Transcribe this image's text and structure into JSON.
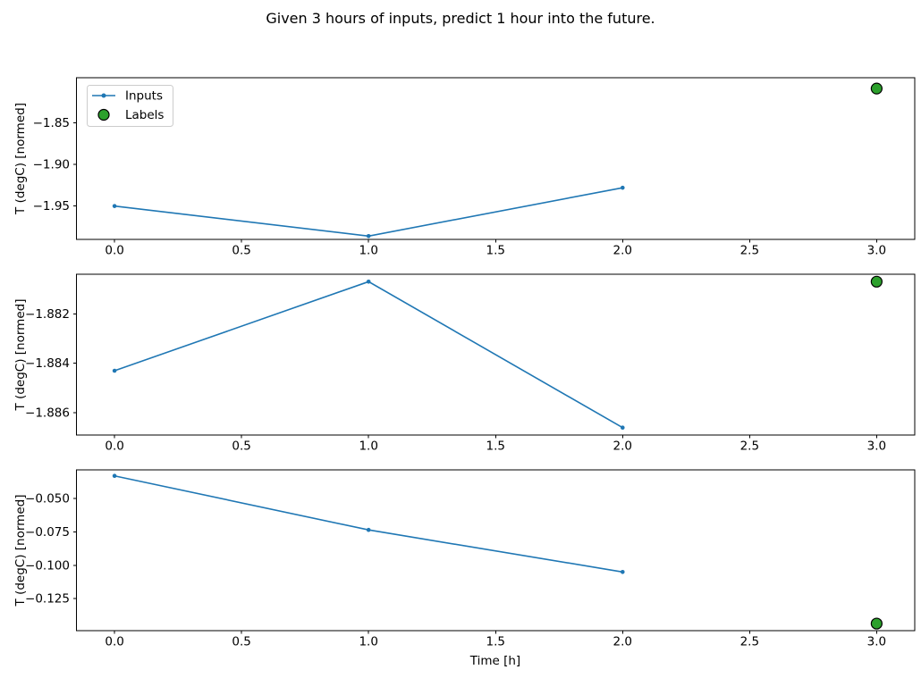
{
  "figure": {
    "title": "Given 3 hours of inputs, predict 1 hour into the future.",
    "xlabel": "Time [h]",
    "background": "#ffffff"
  },
  "colors": {
    "inputs_line": "#1f77b4",
    "labels_fill": "#2ca02c",
    "labels_edge": "#000000",
    "spine": "#000000",
    "text": "#000000",
    "legend_border": "#cccccc"
  },
  "legend": {
    "items": [
      {
        "label": "Inputs",
        "swatch": "line-with-dot-marker",
        "color": "#1f77b4"
      },
      {
        "label": "Labels",
        "swatch": "filled-circle",
        "color": "#2ca02c",
        "edge": "#000000"
      }
    ]
  },
  "chart_data": [
    {
      "type": "line",
      "ylabel": "T (degC) [normed]",
      "xlim": [
        -0.15,
        3.15
      ],
      "ylim": [
        -1.99,
        -1.796
      ],
      "xtick_values": [
        0.0,
        0.5,
        1.0,
        1.5,
        2.0,
        2.5,
        3.0
      ],
      "xtick_labels": [
        "0.0",
        "0.5",
        "1.0",
        "1.5",
        "2.0",
        "2.5",
        "3.0"
      ],
      "ytick_values": [
        -1.85,
        -1.9,
        -1.95
      ],
      "ytick_labels": [
        "−1.85",
        "−1.90",
        "−1.95"
      ],
      "series": [
        {
          "name": "Inputs",
          "x": [
            0,
            1,
            2
          ],
          "y": [
            -1.95,
            -1.986,
            -1.928
          ]
        },
        {
          "name": "Labels",
          "x": [
            3
          ],
          "y": [
            -1.809
          ]
        }
      ],
      "show_legend": true
    },
    {
      "type": "line",
      "ylabel": "T (degC) [normed]",
      "xlim": [
        -0.15,
        3.15
      ],
      "ylim": [
        -1.8869,
        -1.8804
      ],
      "xtick_values": [
        0.0,
        0.5,
        1.0,
        1.5,
        2.0,
        2.5,
        3.0
      ],
      "xtick_labels": [
        "0.0",
        "0.5",
        "1.0",
        "1.5",
        "2.0",
        "2.5",
        "3.0"
      ],
      "ytick_values": [
        -1.882,
        -1.884,
        -1.886
      ],
      "ytick_labels": [
        "−1.882",
        "−1.884",
        "−1.886"
      ],
      "series": [
        {
          "name": "Inputs",
          "x": [
            0,
            1,
            2
          ],
          "y": [
            -1.8843,
            -1.8807,
            -1.8866
          ]
        },
        {
          "name": "Labels",
          "x": [
            3
          ],
          "y": [
            -1.8807
          ]
        }
      ],
      "show_legend": false
    },
    {
      "type": "line",
      "ylabel": "T (degC) [normed]",
      "xlim": [
        -0.15,
        3.15
      ],
      "ylim": [
        -0.149,
        -0.0285
      ],
      "xtick_values": [
        0.0,
        0.5,
        1.0,
        1.5,
        2.0,
        2.5,
        3.0
      ],
      "xtick_labels": [
        "0.0",
        "0.5",
        "1.0",
        "1.5",
        "2.0",
        "2.5",
        "3.0"
      ],
      "ytick_values": [
        -0.05,
        -0.075,
        -0.1,
        -0.125
      ],
      "ytick_labels": [
        "−0.050",
        "−0.075",
        "−0.100",
        "−0.125"
      ],
      "series": [
        {
          "name": "Inputs",
          "x": [
            0,
            1,
            2
          ],
          "y": [
            -0.033,
            -0.0735,
            -0.105
          ]
        },
        {
          "name": "Labels",
          "x": [
            3
          ],
          "y": [
            -0.1437
          ]
        }
      ],
      "show_legend": false
    }
  ]
}
